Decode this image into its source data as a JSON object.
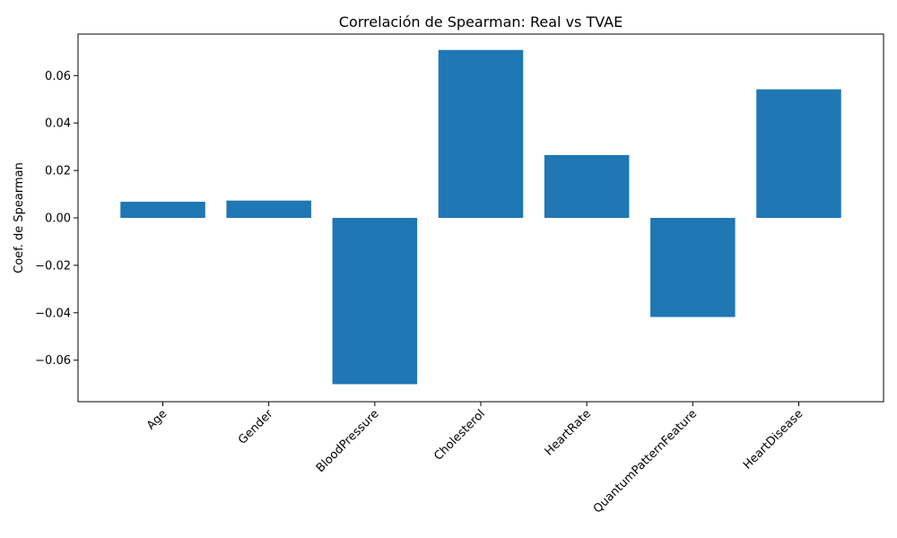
{
  "chart_data": {
    "type": "bar",
    "title": "Correlación de Spearman: Real vs TVAE",
    "xlabel": "",
    "ylabel": "Coef. de Spearman",
    "categories": [
      "Age",
      "Gender",
      "BloodPressure",
      "Cholesterol",
      "HeartRate",
      "QuantumPatternFeature",
      "HeartDisease"
    ],
    "values": [
      0.0068,
      0.0073,
      -0.0701,
      0.0708,
      0.0265,
      -0.0418,
      0.0542
    ],
    "ylim": [
      -0.0775,
      0.0775
    ],
    "yticks": [
      -0.06,
      -0.04,
      -0.02,
      0.0,
      0.02,
      0.04,
      0.06
    ],
    "ytick_labels": [
      "−0.06",
      "−0.04",
      "−0.02",
      "0.00",
      "0.02",
      "0.04",
      "0.06"
    ],
    "bar_color": "#1f77b4",
    "grid": false,
    "legend": false
  }
}
